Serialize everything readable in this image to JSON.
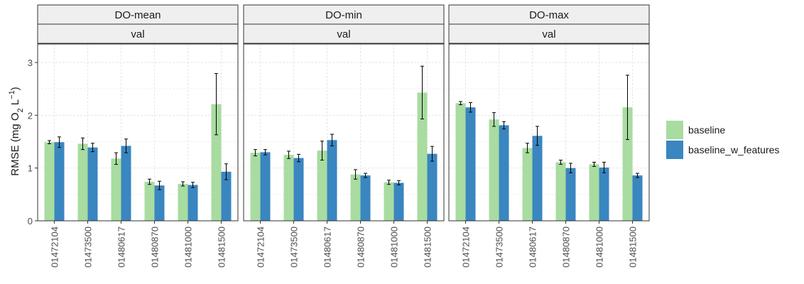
{
  "chart_data": {
    "type": "bar",
    "ylabel": "RMSE (mg O",
    "ylabel_sub": "2",
    "ylabel_unit": " L",
    "ylabel_sup": "−1",
    "ylabel_close": ")",
    "ylim": [
      0,
      3.35
    ],
    "yticks": [
      0,
      1,
      2,
      3
    ],
    "grid": true,
    "legend_position": "right",
    "categories": [
      "01472104",
      "01473500",
      "01480617",
      "01480870",
      "01481000",
      "01481500"
    ],
    "series_meta": [
      {
        "name": "baseline",
        "color": "#a8dca0"
      },
      {
        "name": "baseline_w_features",
        "color": "#3a86c0"
      }
    ],
    "panels": [
      {
        "title": "DO-mean",
        "subtitle": "val",
        "series": [
          {
            "name": "baseline",
            "values": [
              1.49,
              1.46,
              1.18,
              0.74,
              0.7,
              2.21
            ],
            "err": [
              0.03,
              0.11,
              0.11,
              0.05,
              0.04,
              0.58
            ]
          },
          {
            "name": "baseline_w_features",
            "values": [
              1.49,
              1.39,
              1.42,
              0.67,
              0.68,
              0.93
            ],
            "err": [
              0.1,
              0.08,
              0.13,
              0.08,
              0.05,
              0.15
            ]
          }
        ]
      },
      {
        "title": "DO-min",
        "subtitle": "val",
        "series": [
          {
            "name": "baseline",
            "values": [
              1.29,
              1.25,
              1.33,
              0.88,
              0.73,
              2.43
            ],
            "err": [
              0.06,
              0.07,
              0.18,
              0.09,
              0.04,
              0.5
            ]
          },
          {
            "name": "baseline_w_features",
            "values": [
              1.3,
              1.19,
              1.53,
              0.86,
              0.72,
              1.27
            ],
            "err": [
              0.05,
              0.07,
              0.11,
              0.04,
              0.04,
              0.14
            ]
          }
        ]
      },
      {
        "title": "DO-max",
        "subtitle": "val",
        "series": [
          {
            "name": "baseline",
            "values": [
              2.23,
              1.92,
              1.38,
              1.11,
              1.07,
              2.15
            ],
            "err": [
              0.03,
              0.13,
              0.09,
              0.04,
              0.04,
              0.61
            ]
          },
          {
            "name": "baseline_w_features",
            "values": [
              2.15,
              1.81,
              1.61,
              1.0,
              1.01,
              0.86
            ],
            "err": [
              0.09,
              0.07,
              0.18,
              0.09,
              0.1,
              0.04
            ]
          }
        ]
      }
    ]
  }
}
